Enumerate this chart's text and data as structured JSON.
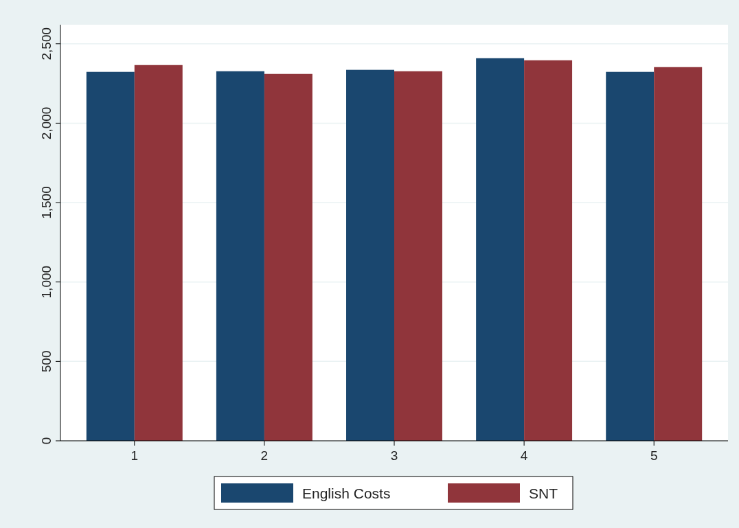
{
  "chart_data": {
    "type": "bar",
    "categories": [
      "1",
      "2",
      "3",
      "4",
      "5"
    ],
    "series": [
      {
        "name": "English Costs",
        "color": "#1a476f",
        "values": [
          2323,
          2327,
          2336,
          2409,
          2323
        ]
      },
      {
        "name": "SNT",
        "color": "#90353b",
        "values": [
          2366,
          2310,
          2327,
          2396,
          2353
        ]
      }
    ],
    "ylim": [
      0,
      2620
    ],
    "yticks": [
      {
        "value": 0,
        "label": "0"
      },
      {
        "value": 500,
        "label": "500"
      },
      {
        "value": 1000,
        "label": "1,000"
      },
      {
        "value": 1500,
        "label": "1,500"
      },
      {
        "value": 2000,
        "label": "2,000"
      },
      {
        "value": 2500,
        "label": "2,500"
      }
    ],
    "grid": "y",
    "legend": "bottom"
  }
}
